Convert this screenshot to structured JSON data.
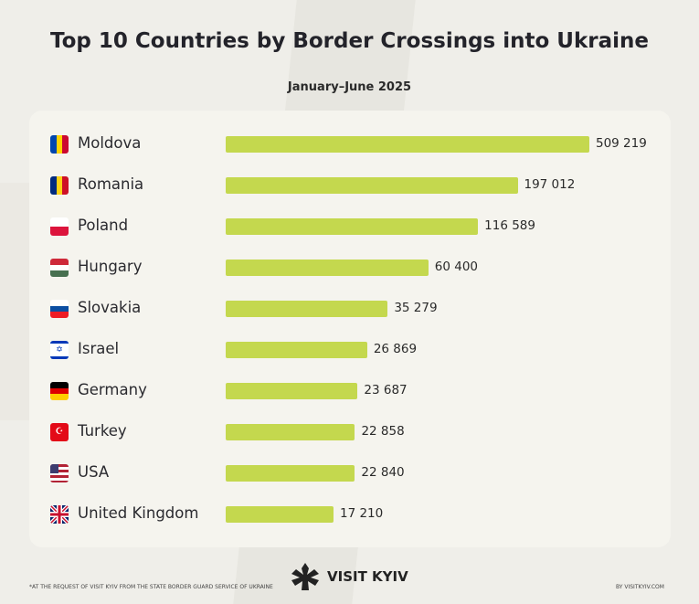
{
  "chart_data": {
    "type": "bar",
    "orientation": "horizontal",
    "title": "Top 10 Countries by Border Crossings into Ukraine",
    "subtitle": "January–June 2025",
    "categories": [
      "Moldova",
      "Romania",
      "Poland",
      "Hungary",
      "Slovakia",
      "Israel",
      "Germany",
      "Turkey",
      "USA",
      "United Kingdom"
    ],
    "values": [
      509219,
      197012,
      116589,
      60400,
      35279,
      26869,
      23687,
      22858,
      22840,
      17210
    ],
    "labels": [
      "509 219",
      "197 012",
      "116 589",
      "60 400",
      "35 279",
      "26 869",
      "23 687",
      "22 858",
      "22 840",
      "17 210"
    ],
    "flag_icons": [
      "moldova-flag",
      "romania-flag",
      "poland-flag",
      "hungary-flag",
      "slovakia-flag",
      "israel-flag",
      "germany-flag",
      "turkey-flag",
      "usa-flag",
      "uk-flag"
    ],
    "bar_color": "#c4d84e",
    "grid": false
  },
  "footer": {
    "note": "*AT THE REQUEST OF VISIT KYIV FROM THE STATE BORDER GUARD SERVICE OF UKRAINE",
    "logo": "VISIT KYIV",
    "credit": "BY VISITKYIV.COM"
  }
}
